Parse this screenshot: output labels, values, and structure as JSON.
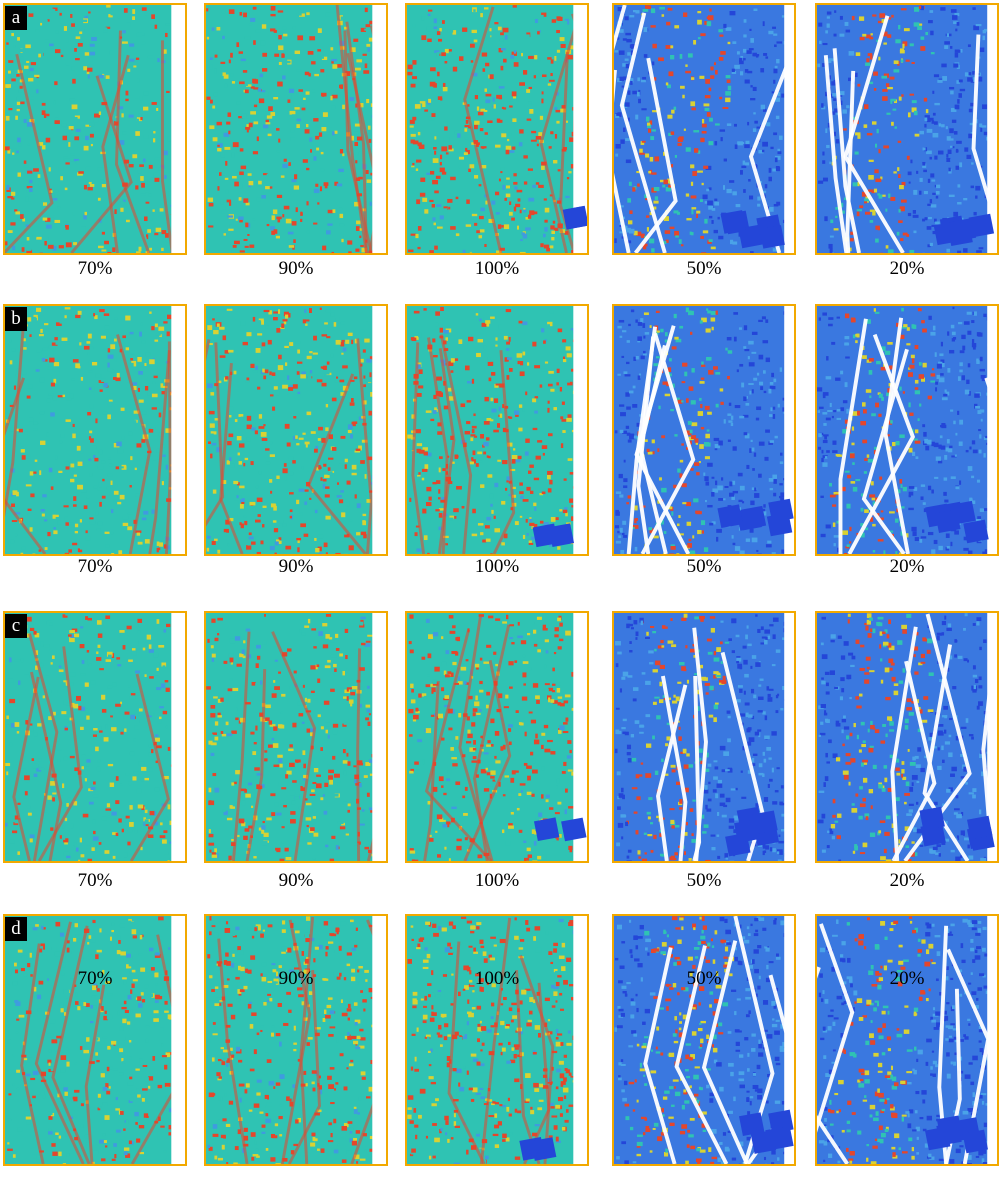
{
  "rows": [
    {
      "label": "a",
      "captions": [
        "70%",
        "90%",
        "100%",
        "50%",
        "20%"
      ]
    },
    {
      "label": "b",
      "captions": [
        "70%",
        "90%",
        "100%",
        "50%",
        "20%"
      ]
    },
    {
      "label": "c",
      "captions": [
        "70%",
        "90%",
        "100%",
        "50%",
        "20%"
      ]
    },
    {
      "label": "d",
      "captions": [
        "70%",
        "90%",
        "100%",
        "50%",
        "20%"
      ]
    }
  ],
  "colors": {
    "frame": "#f2a900",
    "intact_teal": "#2fc3b3",
    "stress_red": "#e5462b",
    "stress_yellow": "#d9d233",
    "fractured_blue": "#2446d8"
  }
}
